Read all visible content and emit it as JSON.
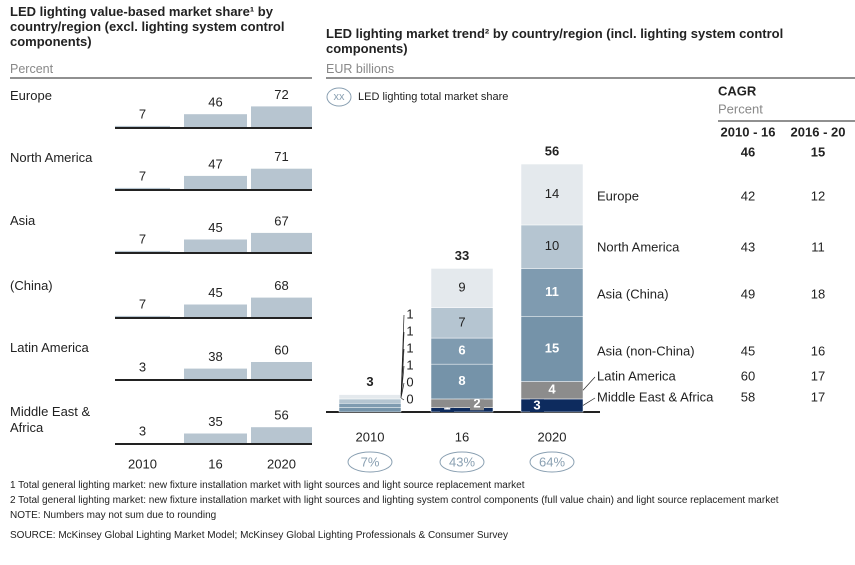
{
  "chart_data": [
    {
      "type": "bar",
      "title": "LED lighting value-based market share¹ by country/region (excl. lighting system control components)",
      "subtitle": "Percent",
      "categories": [
        "2010",
        "16",
        "2020"
      ],
      "series": [
        {
          "name": "Europe",
          "color": "#b7c5d0",
          "values": [
            7,
            46,
            72
          ]
        },
        {
          "name": "North America",
          "color": "#b7c5d0",
          "values": [
            7,
            47,
            71
          ]
        },
        {
          "name": "Asia",
          "color": "#b7c5d0",
          "values": [
            7,
            45,
            67
          ]
        },
        {
          "name": "(China)",
          "color": "#b7c5d0",
          "values": [
            7,
            45,
            68
          ]
        },
        {
          "name": "Latin America",
          "color": "#b7c5d0",
          "values": [
            3,
            38,
            60
          ]
        },
        {
          "name": "Middle East & Africa",
          "color": "#b7c5d0",
          "values": [
            3,
            35,
            56
          ]
        }
      ]
    },
    {
      "type": "stacked",
      "title": "LED lighting market trend² by country/region (incl. lighting system control components)",
      "subtitle": "EUR billions",
      "legend": {
        "symbol": "xx",
        "label": "LED lighting total market share"
      },
      "categories": [
        "2010",
        "16",
        "2020"
      ],
      "totals": [
        3,
        33,
        56
      ],
      "share": {
        "values": [
          7,
          43,
          64
        ],
        "value_labels": [
          "7%",
          "43%",
          "64%"
        ]
      },
      "cagr": {
        "title": "CAGR",
        "subtitle": "Percent",
        "columns": [
          "2010 - 16",
          "2016 - 20"
        ],
        "total": [
          46,
          15
        ]
      },
      "series": [
        {
          "name": "Europe",
          "color": "#e4e9ed",
          "label_color": "#222222",
          "values": [
            1,
            9,
            14
          ],
          "cagr": [
            42,
            12
          ]
        },
        {
          "name": "North America",
          "color": "#b5c5d1",
          "label_color": "#222222",
          "values": [
            1,
            7,
            10
          ],
          "cagr": [
            43,
            11
          ]
        },
        {
          "name": "Asia (China)",
          "color": "#7f9bb0",
          "label_color": "#ffffff",
          "values": [
            1,
            6,
            11
          ],
          "cagr": [
            49,
            18
          ]
        },
        {
          "name": "Asia (non-China)",
          "color": "#7593a9",
          "label_color": "#ffffff",
          "values": [
            1,
            8,
            15
          ],
          "cagr": [
            45,
            16
          ]
        },
        {
          "name": "Latin America",
          "color": "#8c8c8c",
          "label_color": "#ffffff",
          "values": [
            0,
            2,
            4
          ],
          "cagr": [
            60,
            17
          ]
        },
        {
          "name": "Middle East & Africa",
          "color": "#0d2b5e",
          "label_color": "#ffffff",
          "values": [
            0,
            1,
            3
          ],
          "cagr": [
            58,
            17
          ]
        }
      ]
    }
  ],
  "footnotes": [
    "1 Total general lighting market: new fixture installation market with light sources and light source replacement market",
    "2 Total general lighting market: new fixture installation market with light sources and lighting system control components (full value chain) and light source replacement market"
  ],
  "note": "NOTE: Numbers may not sum due to rounding",
  "source": "SOURCE: McKinsey Global Lighting Market Model; McKinsey Global Lighting Professionals & Consumer Survey"
}
